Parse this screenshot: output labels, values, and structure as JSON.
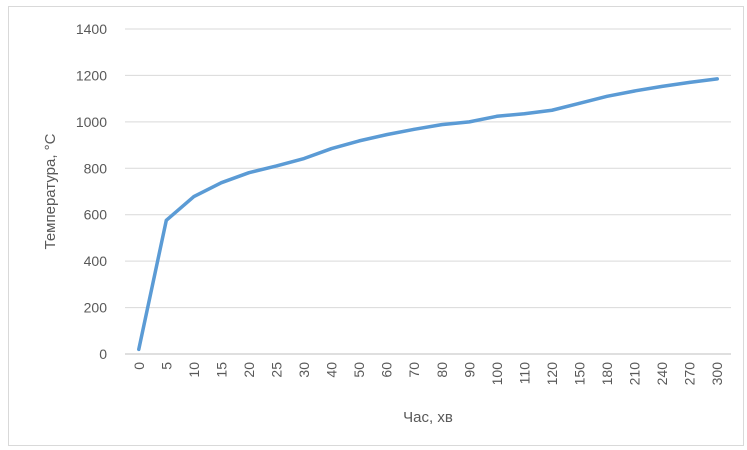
{
  "chart_data": {
    "type": "line",
    "title": "",
    "xlabel": "Час, хв",
    "ylabel": "Температура, °С",
    "categories": [
      "0",
      "5",
      "10",
      "15",
      "20",
      "25",
      "30",
      "40",
      "50",
      "60",
      "70",
      "80",
      "90",
      "100",
      "110",
      "120",
      "150",
      "180",
      "210",
      "240",
      "270",
      "300"
    ],
    "series": [
      {
        "values": [
          20,
          576,
          678,
          738,
          781,
          810,
          842,
          885,
          918,
          945,
          968,
          988,
          1000,
          1024,
          1035,
          1050,
          1080,
          1110,
          1133,
          1153,
          1170,
          1185
        ]
      }
    ],
    "ylim": [
      0,
      1400
    ],
    "yticks": [
      0,
      200,
      400,
      600,
      800,
      1000,
      1200,
      1400
    ],
    "grid": "horizontal",
    "legend": "none",
    "line_color": "#5b9bd5",
    "grid_color": "#d9d9d9",
    "axis_color": "#bfbfbf"
  }
}
